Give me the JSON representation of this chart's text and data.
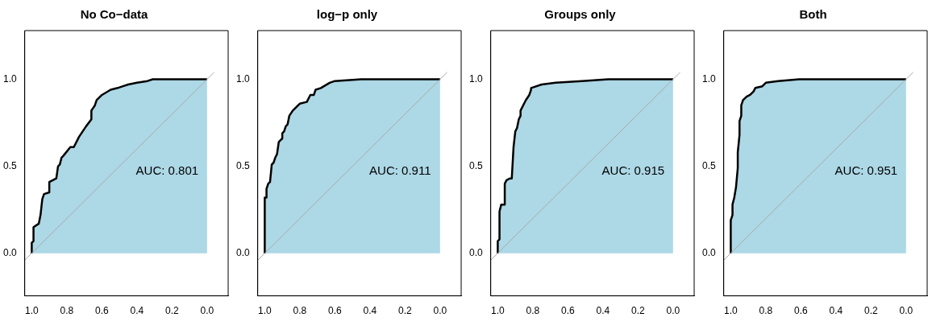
{
  "chart_data": [
    {
      "type": "area",
      "title": "No Co−data",
      "xlim": [
        1.04,
        -0.12
      ],
      "ylim": [
        -0.245,
        1.28
      ],
      "xticks": [
        {
          "value": 1,
          "label": "1.0"
        },
        {
          "value": 0.8,
          "label": "0.8"
        },
        {
          "value": 0.6,
          "label": "0.6"
        },
        {
          "value": 0.4,
          "label": "0.4"
        },
        {
          "value": 0.2,
          "label": "0.2"
        },
        {
          "value": 0,
          "label": "0.0"
        }
      ],
      "yticks": [
        {
          "value": 0,
          "label": "0.0"
        },
        {
          "value": 0.5,
          "label": "0.5"
        },
        {
          "value": 1,
          "label": "1.0"
        }
      ],
      "grid": false,
      "legend": false,
      "marker": "none",
      "line_style": "solid",
      "annotations": [
        "AUC: 0.801"
      ],
      "series": [
        {
          "color": "#add8e6",
          "x": [
            1,
            1,
            0.99,
            0.99,
            0.96,
            0.95,
            0.94,
            0.93,
            0.9,
            0.9,
            0.86,
            0.85,
            0.84,
            0.83,
            0.82,
            0.78,
            0.76,
            0.74,
            0.73,
            0.69,
            0.66,
            0.66,
            0.64,
            0.63,
            0.6,
            0.55,
            0.51,
            0.48,
            0.45,
            0.4,
            0.34,
            0.31,
            0.27,
            0
          ],
          "values": [
            0,
            0.06,
            0.07,
            0.15,
            0.17,
            0.22,
            0.31,
            0.34,
            0.35,
            0.41,
            0.43,
            0.5,
            0.51,
            0.55,
            0.56,
            0.61,
            0.61,
            0.65,
            0.67,
            0.73,
            0.77,
            0.82,
            0.85,
            0.88,
            0.91,
            0.94,
            0.95,
            0.96,
            0.97,
            0.98,
            0.99,
            1,
            1,
            1
          ]
        },
        {
          "type": "line",
          "color": "#aaaaaa",
          "x": [
            1.04,
            -0.04
          ],
          "values": [
            -0.04,
            1.04
          ]
        }
      ]
    },
    {
      "type": "area",
      "title": "log−p only",
      "xlim": [
        1.04,
        -0.12
      ],
      "ylim": [
        -0.245,
        1.28
      ],
      "xticks": [
        {
          "value": 1,
          "label": "1.0"
        },
        {
          "value": 0.8,
          "label": "0.8"
        },
        {
          "value": 0.6,
          "label": "0.6"
        },
        {
          "value": 0.4,
          "label": "0.4"
        },
        {
          "value": 0.2,
          "label": "0.2"
        },
        {
          "value": 0,
          "label": "0.0"
        }
      ],
      "yticks": [
        {
          "value": 0,
          "label": "0.0"
        },
        {
          "value": 0.5,
          "label": "0.5"
        },
        {
          "value": 1,
          "label": "1.0"
        }
      ],
      "grid": false,
      "legend": false,
      "marker": "none",
      "line_style": "solid",
      "annotations": [
        "AUC: 0.911"
      ],
      "series": [
        {
          "color": "#add8e6",
          "x": [
            1,
            1,
            0.99,
            0.99,
            0.98,
            0.97,
            0.96,
            0.95,
            0.94,
            0.93,
            0.92,
            0.9,
            0.9,
            0.89,
            0.88,
            0.87,
            0.86,
            0.84,
            0.81,
            0.8,
            0.76,
            0.75,
            0.74,
            0.72,
            0.71,
            0.68,
            0.63,
            0.6,
            0.45,
            0.3,
            0
          ],
          "values": [
            0,
            0.32,
            0.32,
            0.37,
            0.4,
            0.41,
            0.51,
            0.52,
            0.55,
            0.57,
            0.64,
            0.66,
            0.69,
            0.7,
            0.73,
            0.74,
            0.79,
            0.82,
            0.85,
            0.86,
            0.87,
            0.89,
            0.91,
            0.91,
            0.94,
            0.95,
            0.98,
            0.99,
            1,
            1,
            1
          ]
        },
        {
          "type": "line",
          "color": "#aaaaaa",
          "x": [
            1.04,
            -0.04
          ],
          "values": [
            -0.04,
            1.04
          ]
        }
      ]
    },
    {
      "type": "area",
      "title": "Groups only",
      "xlim": [
        1.04,
        -0.12
      ],
      "ylim": [
        -0.245,
        1.28
      ],
      "xticks": [
        {
          "value": 1,
          "label": "1.0"
        },
        {
          "value": 0.8,
          "label": "0.8"
        },
        {
          "value": 0.6,
          "label": "0.6"
        },
        {
          "value": 0.4,
          "label": "0.4"
        },
        {
          "value": 0.2,
          "label": "0.2"
        },
        {
          "value": 0,
          "label": "0.0"
        }
      ],
      "yticks": [
        {
          "value": 0,
          "label": "0.0"
        },
        {
          "value": 0.5,
          "label": "0.5"
        },
        {
          "value": 1,
          "label": "1.0"
        }
      ],
      "grid": false,
      "legend": false,
      "marker": "none",
      "line_style": "solid",
      "annotations": [
        "AUC: 0.915"
      ],
      "series": [
        {
          "color": "#add8e6",
          "x": [
            1,
            1,
            0.99,
            0.99,
            0.98,
            0.96,
            0.96,
            0.95,
            0.93,
            0.92,
            0.91,
            0.9,
            0.89,
            0.88,
            0.87,
            0.87,
            0.85,
            0.84,
            0.82,
            0.81,
            0.81,
            0.75,
            0.67,
            0.52,
            0.37,
            0
          ],
          "values": [
            0,
            0.07,
            0.08,
            0.24,
            0.28,
            0.28,
            0.4,
            0.42,
            0.43,
            0.43,
            0.61,
            0.7,
            0.72,
            0.77,
            0.79,
            0.82,
            0.86,
            0.88,
            0.91,
            0.94,
            0.95,
            0.97,
            0.98,
            0.99,
            1,
            1
          ]
        },
        {
          "type": "line",
          "color": "#aaaaaa",
          "x": [
            1.04,
            -0.04
          ],
          "values": [
            -0.04,
            1.04
          ]
        }
      ]
    },
    {
      "type": "area",
      "title": "Both",
      "xlim": [
        1.04,
        -0.12
      ],
      "ylim": [
        -0.245,
        1.28
      ],
      "xticks": [
        {
          "value": 1,
          "label": "1.0"
        },
        {
          "value": 0.8,
          "label": "0.8"
        },
        {
          "value": 0.6,
          "label": "0.6"
        },
        {
          "value": 0.4,
          "label": "0.4"
        },
        {
          "value": 0.2,
          "label": "0.2"
        },
        {
          "value": 0,
          "label": "0.0"
        }
      ],
      "yticks": [
        {
          "value": 0,
          "label": "0.0"
        },
        {
          "value": 0.5,
          "label": "0.5"
        },
        {
          "value": 1,
          "label": "1.0"
        }
      ],
      "grid": false,
      "legend": false,
      "marker": "none",
      "line_style": "solid",
      "annotations": [
        "AUC: 0.951"
      ],
      "series": [
        {
          "color": "#add8e6",
          "x": [
            1,
            1,
            0.99,
            0.99,
            0.98,
            0.97,
            0.96,
            0.96,
            0.95,
            0.95,
            0.94,
            0.94,
            0.93,
            0.91,
            0.89,
            0.87,
            0.86,
            0.82,
            0.8,
            0.73,
            0.61,
            0.46,
            0
          ],
          "values": [
            0,
            0.19,
            0.22,
            0.28,
            0.32,
            0.38,
            0.49,
            0.58,
            0.68,
            0.76,
            0.79,
            0.85,
            0.88,
            0.9,
            0.91,
            0.93,
            0.95,
            0.96,
            0.98,
            0.99,
            1,
            1,
            1
          ]
        },
        {
          "type": "line",
          "color": "#aaaaaa",
          "x": [
            1.04,
            -0.04
          ],
          "values": [
            -0.04,
            1.04
          ]
        }
      ]
    }
  ]
}
